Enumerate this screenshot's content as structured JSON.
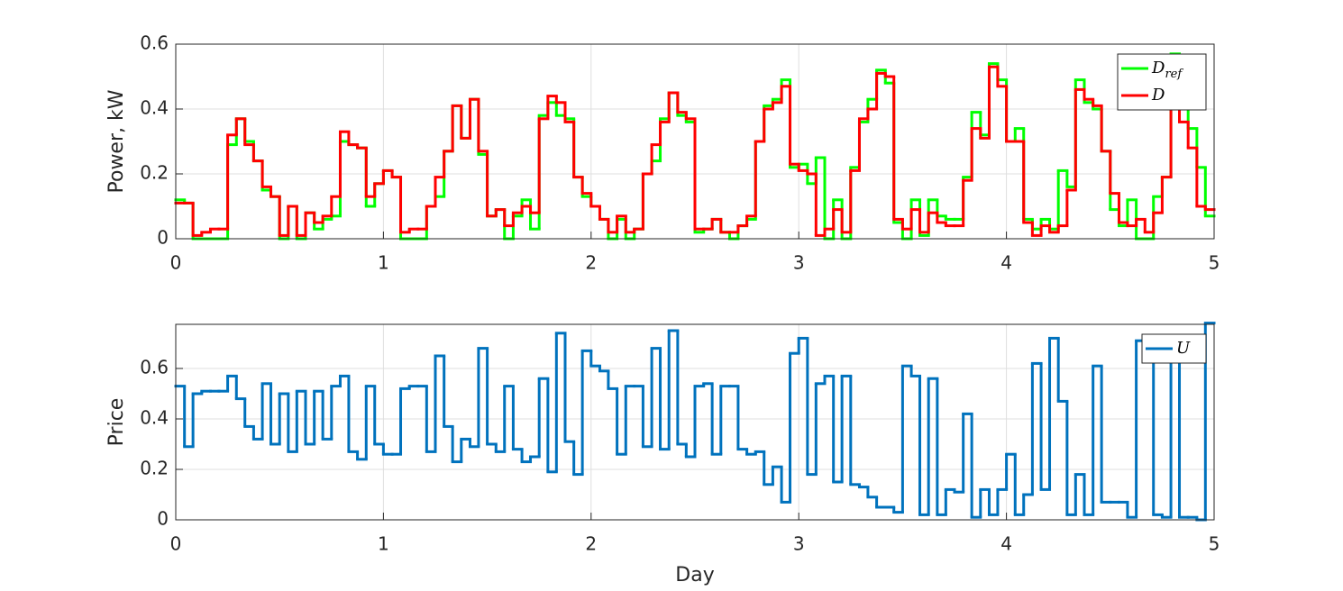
{
  "chart_data": [
    {
      "type": "step",
      "ylabel": "Power, kW",
      "xlim": [
        0,
        5
      ],
      "xticks": [
        0,
        1,
        2,
        3,
        4,
        5
      ],
      "ylim": [
        0,
        0.6
      ],
      "yticks": [
        0,
        0.2,
        0.4,
        0.6
      ],
      "grid": true,
      "legend": "top-right",
      "x": [
        0,
        0.042,
        0.083,
        0.125,
        0.167,
        0.208,
        0.25,
        0.292,
        0.333,
        0.375,
        0.417,
        0.458,
        0.5,
        0.542,
        0.583,
        0.625,
        0.667,
        0.708,
        0.75,
        0.792,
        0.833,
        0.875,
        0.917,
        0.958,
        1,
        1.042,
        1.083,
        1.125,
        1.167,
        1.208,
        1.25,
        1.292,
        1.333,
        1.375,
        1.417,
        1.458,
        1.5,
        1.542,
        1.583,
        1.625,
        1.667,
        1.708,
        1.75,
        1.792,
        1.833,
        1.875,
        1.917,
        1.958,
        2,
        2.042,
        2.083,
        2.125,
        2.167,
        2.208,
        2.25,
        2.292,
        2.333,
        2.375,
        2.417,
        2.458,
        2.5,
        2.542,
        2.583,
        2.625,
        2.667,
        2.708,
        2.75,
        2.792,
        2.833,
        2.875,
        2.917,
        2.958,
        3,
        3.042,
        3.083,
        3.125,
        3.167,
        3.208,
        3.25,
        3.292,
        3.333,
        3.375,
        3.417,
        3.458,
        3.5,
        3.542,
        3.583,
        3.625,
        3.667,
        3.708,
        3.75,
        3.792,
        3.833,
        3.875,
        3.917,
        3.958,
        4,
        4.042,
        4.083,
        4.125,
        4.167,
        4.208,
        4.25,
        4.292,
        4.333,
        4.375,
        4.417,
        4.458,
        4.5,
        4.542,
        4.583,
        4.625,
        4.667,
        4.708,
        4.75,
        4.792,
        4.833,
        4.875,
        4.917,
        4.958
      ],
      "series": [
        {
          "name": "Dref",
          "color": "#00ff00",
          "values": [
            0.12,
            0.11,
            0,
            0,
            0,
            0,
            0.29,
            0.37,
            0.3,
            0.24,
            0.15,
            0.13,
            0,
            0.1,
            0,
            0.08,
            0.03,
            0.06,
            0.07,
            0.3,
            0.29,
            0.28,
            0.1,
            0.17,
            0.21,
            0.19,
            0,
            0,
            0,
            0.1,
            0.13,
            0.27,
            0.41,
            0.31,
            0.43,
            0.26,
            0.07,
            0.09,
            0,
            0.07,
            0.12,
            0.03,
            0.38,
            0.42,
            0.38,
            0.37,
            0.19,
            0.13,
            0.1,
            0.06,
            0,
            0.06,
            0,
            0.03,
            0.2,
            0.24,
            0.37,
            0.45,
            0.38,
            0.36,
            0.02,
            0.03,
            0.06,
            0.02,
            0,
            0.04,
            0.06,
            0.3,
            0.41,
            0.43,
            0.49,
            0.22,
            0.23,
            0.17,
            0.25,
            0,
            0.12,
            0,
            0.22,
            0.36,
            0.43,
            0.52,
            0.48,
            0.05,
            0,
            0.12,
            0.01,
            0.12,
            0.07,
            0.06,
            0.06,
            0.19,
            0.39,
            0.32,
            0.54,
            0.49,
            0.3,
            0.34,
            0.06,
            0.03,
            0.06,
            0.03,
            0.21,
            0.16,
            0.49,
            0.42,
            0.4,
            0.27,
            0.09,
            0.04,
            0.12,
            0,
            0,
            0.13,
            0.19,
            0.57,
            0.43,
            0.34,
            0.22,
            0.07
          ]
        },
        {
          "name": "D",
          "color": "#ff0000",
          "values": [
            0.11,
            0.11,
            0.01,
            0.02,
            0.03,
            0.03,
            0.32,
            0.37,
            0.29,
            0.24,
            0.16,
            0.13,
            0.01,
            0.1,
            0.01,
            0.08,
            0.05,
            0.07,
            0.13,
            0.33,
            0.29,
            0.28,
            0.13,
            0.17,
            0.21,
            0.19,
            0.02,
            0.03,
            0.03,
            0.1,
            0.19,
            0.27,
            0.41,
            0.31,
            0.43,
            0.27,
            0.07,
            0.09,
            0.04,
            0.08,
            0.1,
            0.08,
            0.37,
            0.44,
            0.42,
            0.36,
            0.19,
            0.14,
            0.1,
            0.06,
            0.02,
            0.07,
            0.02,
            0.03,
            0.2,
            0.29,
            0.36,
            0.45,
            0.39,
            0.37,
            0.03,
            0.03,
            0.06,
            0.02,
            0.02,
            0.04,
            0.07,
            0.3,
            0.4,
            0.42,
            0.47,
            0.23,
            0.21,
            0.2,
            0.01,
            0.03,
            0.09,
            0.02,
            0.21,
            0.37,
            0.4,
            0.51,
            0.5,
            0.06,
            0.03,
            0.09,
            0.02,
            0.08,
            0.05,
            0.04,
            0.04,
            0.18,
            0.34,
            0.31,
            0.53,
            0.47,
            0.3,
            0.3,
            0.05,
            0.01,
            0.04,
            0.02,
            0.04,
            0.15,
            0.46,
            0.43,
            0.41,
            0.27,
            0.14,
            0.05,
            0.04,
            0.06,
            0.02,
            0.08,
            0.19,
            0.47,
            0.36,
            0.28,
            0.1,
            0.09
          ]
        }
      ]
    },
    {
      "type": "step",
      "xlabel": "Day",
      "ylabel": "Price",
      "xlim": [
        0,
        5
      ],
      "xticks": [
        0,
        1,
        2,
        3,
        4,
        5
      ],
      "ylim": [
        0,
        0.775
      ],
      "yticks": [
        0,
        0.2,
        0.4,
        0.6
      ],
      "grid": true,
      "legend": "top-right",
      "x": [
        0,
        0.042,
        0.083,
        0.125,
        0.167,
        0.208,
        0.25,
        0.292,
        0.333,
        0.375,
        0.417,
        0.458,
        0.5,
        0.542,
        0.583,
        0.625,
        0.667,
        0.708,
        0.75,
        0.792,
        0.833,
        0.875,
        0.917,
        0.958,
        1,
        1.042,
        1.083,
        1.125,
        1.167,
        1.208,
        1.25,
        1.292,
        1.333,
        1.375,
        1.417,
        1.458,
        1.5,
        1.542,
        1.583,
        1.625,
        1.667,
        1.708,
        1.75,
        1.792,
        1.833,
        1.875,
        1.917,
        1.958,
        2,
        2.042,
        2.083,
        2.125,
        2.167,
        2.208,
        2.25,
        2.292,
        2.333,
        2.375,
        2.417,
        2.458,
        2.5,
        2.542,
        2.583,
        2.625,
        2.667,
        2.708,
        2.75,
        2.792,
        2.833,
        2.875,
        2.917,
        2.958,
        3,
        3.042,
        3.083,
        3.125,
        3.167,
        3.208,
        3.25,
        3.292,
        3.333,
        3.375,
        3.417,
        3.458,
        3.5,
        3.542,
        3.583,
        3.625,
        3.667,
        3.708,
        3.75,
        3.792,
        3.833,
        3.875,
        3.917,
        3.958,
        4,
        4.042,
        4.083,
        4.125,
        4.167,
        4.208,
        4.25,
        4.292,
        4.333,
        4.375,
        4.417,
        4.458,
        4.5,
        4.542,
        4.583,
        4.625,
        4.667,
        4.708,
        4.75,
        4.792,
        4.833,
        4.875,
        4.917,
        4.958
      ],
      "series": [
        {
          "name": "U",
          "color": "#0072bd",
          "values": [
            0.53,
            0.29,
            0.5,
            0.51,
            0.51,
            0.51,
            0.57,
            0.48,
            0.37,
            0.32,
            0.54,
            0.3,
            0.5,
            0.27,
            0.51,
            0.3,
            0.51,
            0.32,
            0.53,
            0.57,
            0.27,
            0.24,
            0.53,
            0.3,
            0.26,
            0.26,
            0.52,
            0.53,
            0.53,
            0.27,
            0.65,
            0.37,
            0.23,
            0.32,
            0.29,
            0.68,
            0.3,
            0.27,
            0.53,
            0.28,
            0.23,
            0.25,
            0.56,
            0.19,
            0.74,
            0.31,
            0.18,
            0.67,
            0.61,
            0.59,
            0.52,
            0.26,
            0.53,
            0.53,
            0.29,
            0.68,
            0.28,
            0.75,
            0.3,
            0.25,
            0.53,
            0.54,
            0.26,
            0.53,
            0.53,
            0.28,
            0.26,
            0.27,
            0.14,
            0.21,
            0.07,
            0.66,
            0.72,
            0.18,
            0.54,
            0.57,
            0.15,
            0.57,
            0.14,
            0.13,
            0.09,
            0.05,
            0.05,
            0.03,
            0.61,
            0.57,
            0.02,
            0.56,
            0.02,
            0.12,
            0.11,
            0.42,
            0.01,
            0.12,
            0.02,
            0.12,
            0.26,
            0.02,
            0.1,
            0.62,
            0.12,
            0.72,
            0.47,
            0.02,
            0.18,
            0.02,
            0.61,
            0.07,
            0.07,
            0.07,
            0.01,
            0.71,
            0.72,
            0.02,
            0.01,
            0.72,
            0.01,
            0.01,
            0.0,
            0.78
          ]
        }
      ]
    }
  ]
}
